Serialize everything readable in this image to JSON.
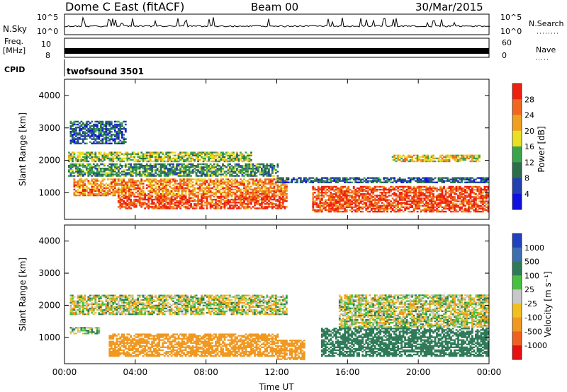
{
  "header": {
    "station": "Dome C East (fitACF)",
    "beam": "Beam 00",
    "date": "30/Mar/2015"
  },
  "strip_labels": {
    "nsky": "N.Sky",
    "nsky_top": "10^5",
    "nsky_bottom": "10^0",
    "nsky_right_top": "10^5",
    "nsky_right_bottom": "10^0",
    "nsearch": "N.Search",
    "freq": "Freq.",
    "freq_unit": "[MHz]",
    "freq_top": "10",
    "freq_bottom": "8",
    "nave_top": "60",
    "nave_bottom": "0",
    "nave": "Nave",
    "cpid": "CPID",
    "program": "twofsound 3501"
  },
  "x_axis": {
    "label": "Time UT",
    "ticks": [
      "00:00",
      "04:00",
      "08:00",
      "12:00",
      "16:00",
      "20:00",
      "00:00"
    ]
  },
  "y_axis": {
    "label": "Slant Range [km]",
    "ticks": [
      "1000",
      "2000",
      "3000",
      "4000"
    ]
  },
  "chart_data": [
    {
      "type": "heatmap",
      "title": "",
      "xlabel": "",
      "ylabel": "Slant Range [km]",
      "xlim": [
        0,
        24
      ],
      "ylim": [
        180,
        4500
      ],
      "colorbar": {
        "label": "Power [dB]",
        "ticks": [
          "28",
          "24",
          "20",
          "16",
          "12",
          "8",
          "4"
        ],
        "colors": [
          "#1010e0",
          "#2440b0",
          "#2c6e4c",
          "#3aa44c",
          "#e8e020",
          "#f0a020",
          "#f06820",
          "#ee2010"
        ]
      },
      "bands": [
        {
          "t0": 0.2,
          "t1": 12.0,
          "r0": 1500,
          "r1": 1900,
          "value": 12
        },
        {
          "t0": 0.2,
          "t1": 10.5,
          "r0": 1950,
          "r1": 2250,
          "value": 16
        },
        {
          "t0": 0.5,
          "t1": 12.5,
          "r0": 900,
          "r1": 1400,
          "value": 24
        },
        {
          "t0": 3.0,
          "t1": 12.5,
          "r0": 500,
          "r1": 900,
          "value": 28
        },
        {
          "t0": 12.0,
          "t1": 24.0,
          "r0": 1300,
          "r1": 1450,
          "value": 8
        },
        {
          "t0": 14.0,
          "t1": 24.0,
          "r0": 400,
          "r1": 1200,
          "value": 28
        },
        {
          "t0": 18.5,
          "t1": 23.5,
          "r0": 1950,
          "r1": 2150,
          "value": 20
        },
        {
          "t0": 0.3,
          "t1": 3.5,
          "r0": 2500,
          "r1": 3200,
          "value": 8
        }
      ]
    },
    {
      "type": "heatmap",
      "title": "",
      "xlabel": "Time UT",
      "ylabel": "Slant Range [km]",
      "xlim": [
        0,
        24
      ],
      "ylim": [
        180,
        4500
      ],
      "colorbar": {
        "label": "Velocity [m s⁻¹]",
        "ticks": [
          "1000",
          "500",
          "100",
          "25",
          "-25",
          "-100",
          "-500",
          "-1000"
        ],
        "colors": [
          "#2040c0",
          "#3c6eb0",
          "#2f7a58",
          "#48c040",
          "#c8c8c8",
          "#f0c020",
          "#f09820",
          "#f06020",
          "#e81010"
        ]
      },
      "bands": [
        {
          "t0": 0.3,
          "t1": 12.5,
          "r0": 1700,
          "r1": 2300,
          "value": 0
        },
        {
          "t0": 15.5,
          "t1": 24.0,
          "r0": 1300,
          "r1": 2300,
          "value": 0
        },
        {
          "t0": 2.5,
          "t1": 12.0,
          "r0": 400,
          "r1": 1100,
          "value": -300
        },
        {
          "t0": 12.0,
          "t1": 13.5,
          "r0": 300,
          "r1": 900,
          "value": -300
        },
        {
          "t0": 14.5,
          "t1": 24.0,
          "r0": 400,
          "r1": 1300,
          "value": 300
        },
        {
          "t0": 0.3,
          "t1": 2.0,
          "r0": 1100,
          "r1": 1300,
          "value": 60
        }
      ]
    }
  ]
}
